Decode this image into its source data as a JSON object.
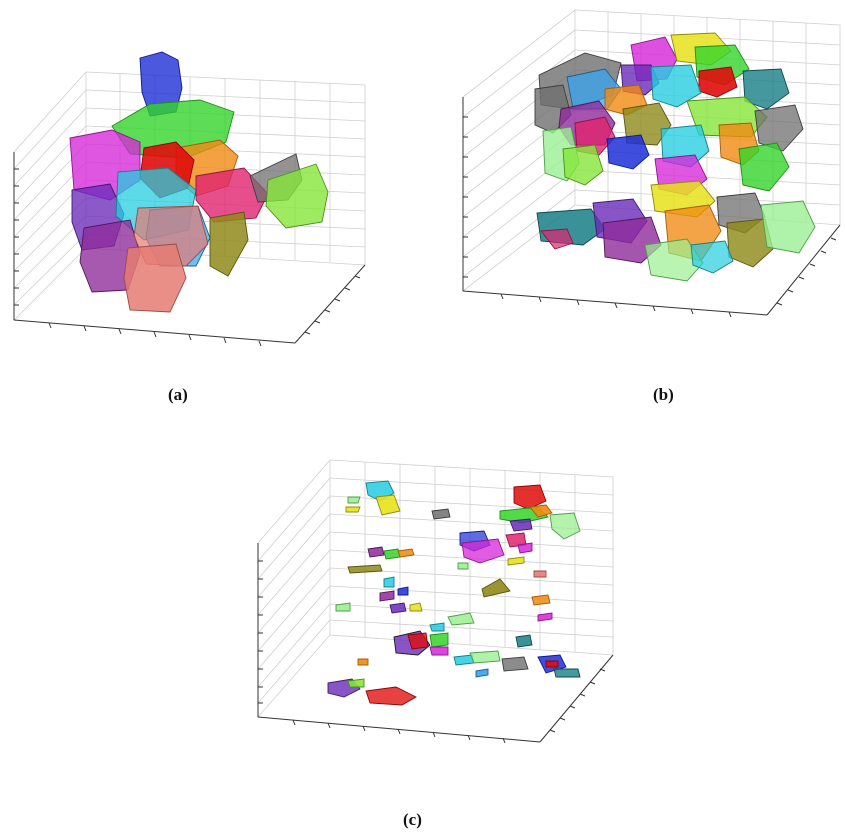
{
  "figure": {
    "panels": [
      {
        "id": "a",
        "caption": "(a)",
        "variant": "dense cluster of segmented grains, upper body with a tall blue column"
      },
      {
        "id": "b",
        "caption": "(b)",
        "variant": "two dense layers of segmented grains"
      },
      {
        "id": "c",
        "caption": "(c)",
        "variant": "sparse scattered small segmented fragments"
      }
    ]
  },
  "palette": {
    "blue": "#1d2fd6",
    "green": "#35d42a",
    "magenta": "#d626d8",
    "red": "#e00c0c",
    "orange": "#f08a12",
    "cyan": "#25cde0",
    "pink": "#e0236f",
    "purple": "#6a2bb8",
    "violet": "#8e2a9a",
    "salmon": "#e57b72",
    "olive": "#8f8a1a",
    "gray": "#6f6f6f",
    "lime": "#86e63a",
    "yellow": "#e8e21b",
    "teal": "#177f86",
    "darkgreen": "#2f8f2a",
    "skyblue": "#37a4f0",
    "lightgreen": "#9bef93"
  }
}
